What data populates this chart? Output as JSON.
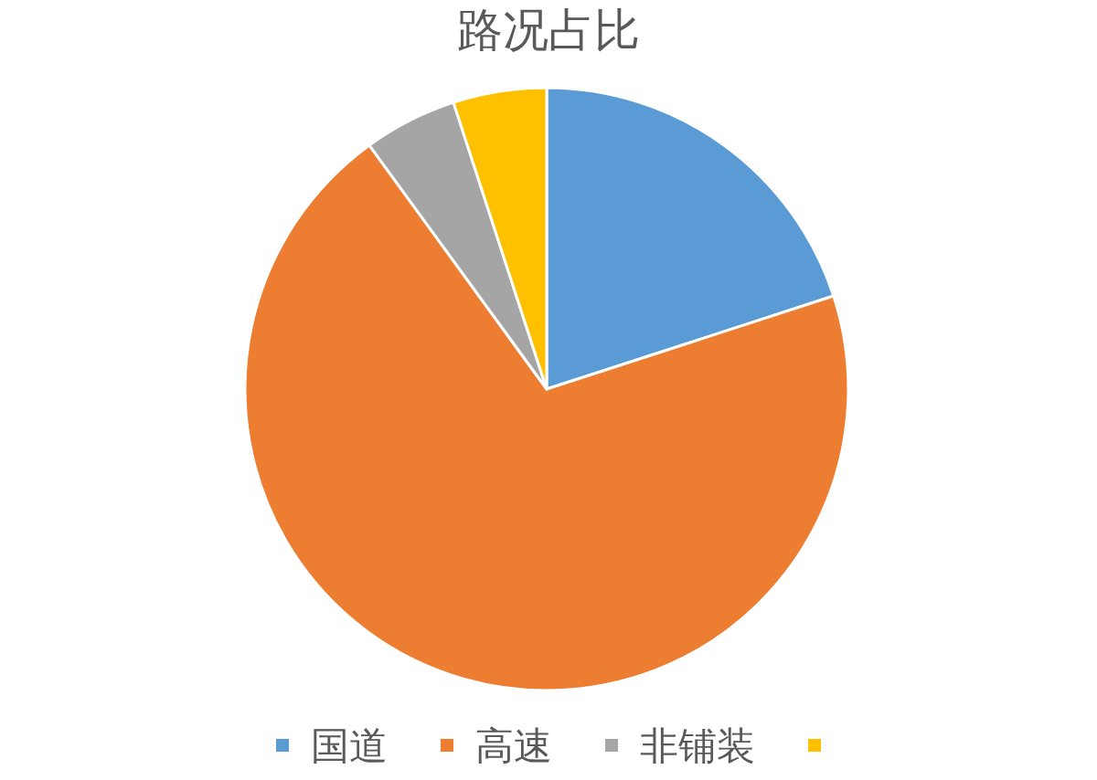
{
  "chart_data": {
    "type": "pie",
    "title": "路况占比",
    "categories": [
      "国道",
      "高速",
      "非铺装",
      null
    ],
    "values": [
      20,
      70,
      5,
      5
    ],
    "colors": [
      "#5b9bd5",
      "#ed7d31",
      "#a5a5a5",
      "#ffc000"
    ],
    "legend": "bottom"
  }
}
